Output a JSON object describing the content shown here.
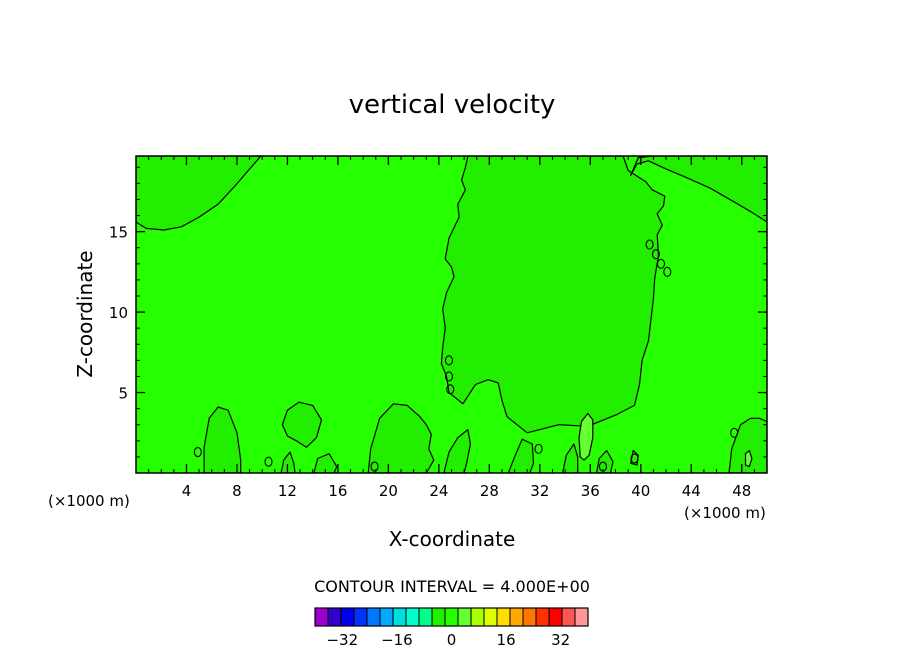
{
  "chart_data": {
    "type": "heatmap",
    "title": "vertical velocity",
    "xlabel": "X-coordinate",
    "ylabel": "Z-coordinate",
    "x_unit_left": "(×1000 m)",
    "x_unit_right": "(×1000 m)",
    "xlim": [
      0,
      50
    ],
    "ylim": [
      0,
      19.7
    ],
    "x_ticks": [
      4,
      8,
      12,
      16,
      20,
      24,
      28,
      32,
      36,
      40,
      44,
      48
    ],
    "y_ticks": [
      5,
      10,
      15
    ],
    "x_minor_step": 1,
    "y_minor_step": 1,
    "contour_interval_text": "CONTOUR INTERVAL = 4.000E+00",
    "contour_interval": 4,
    "background_color": "#26ff00",
    "regions": [
      {
        "name": "upper-left-negative",
        "color": "#22ee00",
        "points": [
          [
            0,
            15.6
          ],
          [
            0.8,
            15.2
          ],
          [
            2.2,
            15.1
          ],
          [
            3.6,
            15.3
          ],
          [
            5,
            15.9
          ],
          [
            6.5,
            16.7
          ],
          [
            7.8,
            17.8
          ],
          [
            8.9,
            18.8
          ],
          [
            9.9,
            19.7
          ],
          [
            0,
            19.7
          ]
        ]
      },
      {
        "name": "central-negative",
        "color": "#22ee00",
        "points": [
          [
            26.3,
            19.7
          ],
          [
            26.1,
            19.0
          ],
          [
            25.8,
            18.2
          ],
          [
            26.1,
            17.6
          ],
          [
            25.5,
            16.7
          ],
          [
            25.6,
            15.9
          ],
          [
            24.8,
            14.6
          ],
          [
            24.5,
            13.3
          ],
          [
            25.0,
            12.8
          ],
          [
            25.2,
            12.2
          ],
          [
            24.6,
            11.2
          ],
          [
            24.3,
            10.2
          ],
          [
            24.5,
            9.0
          ],
          [
            24.3,
            7.8
          ],
          [
            24.2,
            6.8
          ],
          [
            24.6,
            6.0
          ],
          [
            24.8,
            5.0
          ],
          [
            25.9,
            4.3
          ],
          [
            26.9,
            5.5
          ],
          [
            27.9,
            5.8
          ],
          [
            28.7,
            5.6
          ],
          [
            29.0,
            4.5
          ],
          [
            29.4,
            3.5
          ],
          [
            31.0,
            2.5
          ],
          [
            33.5,
            3.0
          ],
          [
            35.8,
            2.9
          ],
          [
            38.0,
            3.6
          ],
          [
            39.5,
            4.2
          ],
          [
            39.9,
            5.5
          ],
          [
            40.1,
            7.0
          ],
          [
            40.6,
            8.2
          ],
          [
            40.8,
            9.5
          ],
          [
            41.0,
            10.8
          ],
          [
            41.1,
            12.1
          ],
          [
            41.4,
            13.5
          ],
          [
            41.3,
            14.8
          ],
          [
            41.7,
            15.4
          ],
          [
            41.3,
            16.1
          ],
          [
            41.8,
            16.6
          ],
          [
            41.9,
            17.2
          ],
          [
            40.9,
            17.6
          ],
          [
            40.4,
            18.1
          ],
          [
            39.0,
            18.8
          ],
          [
            38.6,
            19.7
          ]
        ]
      },
      {
        "name": "upper-right-negative",
        "color": "#22ee00",
        "points": [
          [
            39.2,
            18.5
          ],
          [
            39.7,
            19.2
          ],
          [
            40.6,
            19.4
          ],
          [
            42.0,
            18.9
          ],
          [
            43.5,
            18.4
          ],
          [
            45.5,
            17.7
          ],
          [
            47.5,
            16.8
          ],
          [
            49.0,
            16.1
          ],
          [
            50.0,
            15.6
          ],
          [
            50.0,
            19.7
          ],
          [
            41.0,
            19.7
          ],
          [
            39.8,
            19.6
          ]
        ]
      },
      {
        "name": "bottom-left-bumps-negative",
        "color": "#22ee00",
        "points": [
          [
            5.4,
            0
          ],
          [
            5.4,
            1.6
          ],
          [
            5.8,
            3.4
          ],
          [
            6.5,
            4.1
          ],
          [
            7.3,
            3.9
          ],
          [
            8.0,
            2.5
          ],
          [
            8.3,
            0.8
          ],
          [
            8.3,
            0
          ]
        ]
      },
      {
        "name": "bottom-left-2-negative",
        "color": "#22ee00",
        "points": [
          [
            11.5,
            0
          ],
          [
            11.7,
            0.8
          ],
          [
            12.2,
            1.3
          ],
          [
            12.5,
            0.6
          ],
          [
            12.6,
            0
          ]
        ]
      },
      {
        "name": "bubble-13-negative",
        "color": "#22ee00",
        "points": [
          [
            11.6,
            3.0
          ],
          [
            12.0,
            3.9
          ],
          [
            12.9,
            4.4
          ],
          [
            14.0,
            4.2
          ],
          [
            14.7,
            3.3
          ],
          [
            14.3,
            2.2
          ],
          [
            13.5,
            1.6
          ],
          [
            12.7,
            2.0
          ],
          [
            12.0,
            2.3
          ]
        ]
      },
      {
        "name": "bottom-16-negative",
        "color": "#22ee00",
        "points": [
          [
            14.1,
            0
          ],
          [
            14.4,
            0.9
          ],
          [
            15.3,
            1.2
          ],
          [
            15.9,
            0.4
          ],
          [
            15.7,
            0
          ]
        ]
      },
      {
        "name": "bottom-20-negative",
        "color": "#22ee00",
        "points": [
          [
            18.4,
            0
          ],
          [
            18.6,
            1.5
          ],
          [
            19.3,
            3.4
          ],
          [
            20.4,
            4.3
          ],
          [
            21.5,
            4.2
          ],
          [
            22.5,
            3.5
          ],
          [
            23.0,
            3.0
          ],
          [
            23.4,
            2.4
          ],
          [
            23.2,
            1.5
          ],
          [
            23.6,
            0.8
          ],
          [
            23.0,
            0
          ]
        ]
      },
      {
        "name": "bottom-25-negative",
        "color": "#22ee00",
        "points": [
          [
            24.4,
            0
          ],
          [
            24.8,
            1.3
          ],
          [
            25.5,
            2.2
          ],
          [
            26.3,
            2.7
          ],
          [
            26.5,
            1.8
          ],
          [
            26.2,
            0.6
          ],
          [
            26.0,
            0
          ]
        ]
      },
      {
        "name": "bottom-30-negative",
        "color": "#22ee00",
        "points": [
          [
            29.5,
            0
          ],
          [
            30.1,
            1.2
          ],
          [
            30.6,
            2.1
          ],
          [
            31.4,
            1.8
          ],
          [
            31.5,
            0.6
          ],
          [
            31.2,
            0
          ]
        ]
      },
      {
        "name": "bottom-34-negative",
        "color": "#22ee00",
        "points": [
          [
            33.8,
            0
          ],
          [
            34.1,
            1.1
          ],
          [
            34.7,
            1.8
          ],
          [
            35.0,
            1.0
          ],
          [
            35.0,
            0
          ]
        ]
      },
      {
        "name": "bottom-37-negative",
        "color": "#22ee00",
        "points": [
          [
            36.5,
            0
          ],
          [
            36.7,
            0.9
          ],
          [
            37.3,
            1.4
          ],
          [
            37.8,
            0.7
          ],
          [
            37.6,
            0
          ]
        ]
      },
      {
        "name": "bottom-39-negative",
        "color": "#22ee00",
        "points": [
          [
            39.2,
            0.6
          ],
          [
            39.4,
            1.4
          ],
          [
            39.8,
            1.1
          ],
          [
            39.7,
            0.5
          ]
        ]
      },
      {
        "name": "bottom-right-negative",
        "color": "#22ee00",
        "points": [
          [
            47.0,
            0
          ],
          [
            47.2,
            1.5
          ],
          [
            47.9,
            3.0
          ],
          [
            48.7,
            3.4
          ],
          [
            49.4,
            3.4
          ],
          [
            50.0,
            3.2
          ],
          [
            50.0,
            0
          ]
        ]
      },
      {
        "name": "yellowish-36",
        "color": "#66ff33",
        "points": [
          [
            35.2,
            1.0
          ],
          [
            35.1,
            2.2
          ],
          [
            35.3,
            3.2
          ],
          [
            35.8,
            3.7
          ],
          [
            36.2,
            3.3
          ],
          [
            36.2,
            2.2
          ],
          [
            35.9,
            1.1
          ],
          [
            35.5,
            0.8
          ]
        ]
      },
      {
        "name": "yellowish-48",
        "color": "#66ff33",
        "points": [
          [
            48.3,
            0.5
          ],
          [
            48.3,
            1.2
          ],
          [
            48.6,
            1.4
          ],
          [
            48.8,
            0.9
          ],
          [
            48.6,
            0.4
          ]
        ]
      }
    ],
    "small_loops": [
      [
        24.8,
        7.0
      ],
      [
        24.8,
        6.0
      ],
      [
        24.9,
        5.2
      ],
      [
        40.7,
        14.2
      ],
      [
        41.2,
        13.6
      ],
      [
        41.6,
        13.0
      ],
      [
        42.1,
        12.5
      ],
      [
        4.9,
        1.3
      ],
      [
        10.5,
        0.7
      ],
      [
        31.9,
        1.5
      ],
      [
        37.0,
        0.4
      ],
      [
        39.5,
        0.9
      ],
      [
        47.4,
        2.5
      ],
      [
        18.9,
        0.4
      ]
    ],
    "colorbar": {
      "tick_labels": [
        "-32",
        "-16",
        "0",
        "16",
        "32"
      ],
      "tick_values": [
        -32,
        -16,
        0,
        16,
        32
      ],
      "levels_min": -40,
      "levels_max": 40,
      "colors": [
        "#9900cc",
        "#3300cc",
        "#0000ee",
        "#0033ff",
        "#0077ff",
        "#00aaff",
        "#00dddd",
        "#00ffcc",
        "#00ff88",
        "#22ee00",
        "#26ff00",
        "#66ff33",
        "#aaff00",
        "#ddff00",
        "#ffdd00",
        "#ffaa00",
        "#ff7700",
        "#ff3300",
        "#ff0000",
        "#ff5555",
        "#ff9999"
      ]
    }
  }
}
